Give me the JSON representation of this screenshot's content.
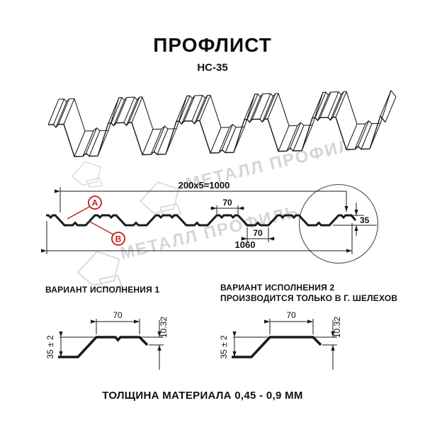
{
  "colors": {
    "accent": "#b32318",
    "watermark": "#d6d6d6",
    "ink": "#1a1a1a"
  },
  "header": {
    "title": "ПРОФЛИСТ",
    "subtitle": "НС-35"
  },
  "watermark": {
    "brand_text": "МЕТАЛЛ ПРОФИЛЬ"
  },
  "cross_section": {
    "dim_pitch": "200x5=1000",
    "dim_overall_width": "1060",
    "dim_rib_top_width": "70",
    "dim_rib_bottom_width": "70",
    "dim_profile_height": "35",
    "point_a": "A",
    "point_b": "B"
  },
  "variants": {
    "variant1": {
      "heading": "ВАРИАНТ ИСПОЛНЕНИЯ 1",
      "dim_top_width": "70",
      "dim_edge_height": "10.32",
      "dim_height_tolerance": "35 ± 2"
    },
    "variant2": {
      "heading": "ВАРИАНТ ИСПОЛНЕНИЯ 2",
      "subheading": "ПРОИЗВОДИТСЯ ТОЛЬКО В Г. ШЕЛЕХОВ",
      "dim_top_width": "70",
      "dim_edge_height": "10.32",
      "dim_height_tolerance": "35 ± 2"
    }
  },
  "footer": {
    "material_thickness": "ТОЛЩИНА МАТЕРИАЛА 0,45 - 0,9 ММ"
  }
}
